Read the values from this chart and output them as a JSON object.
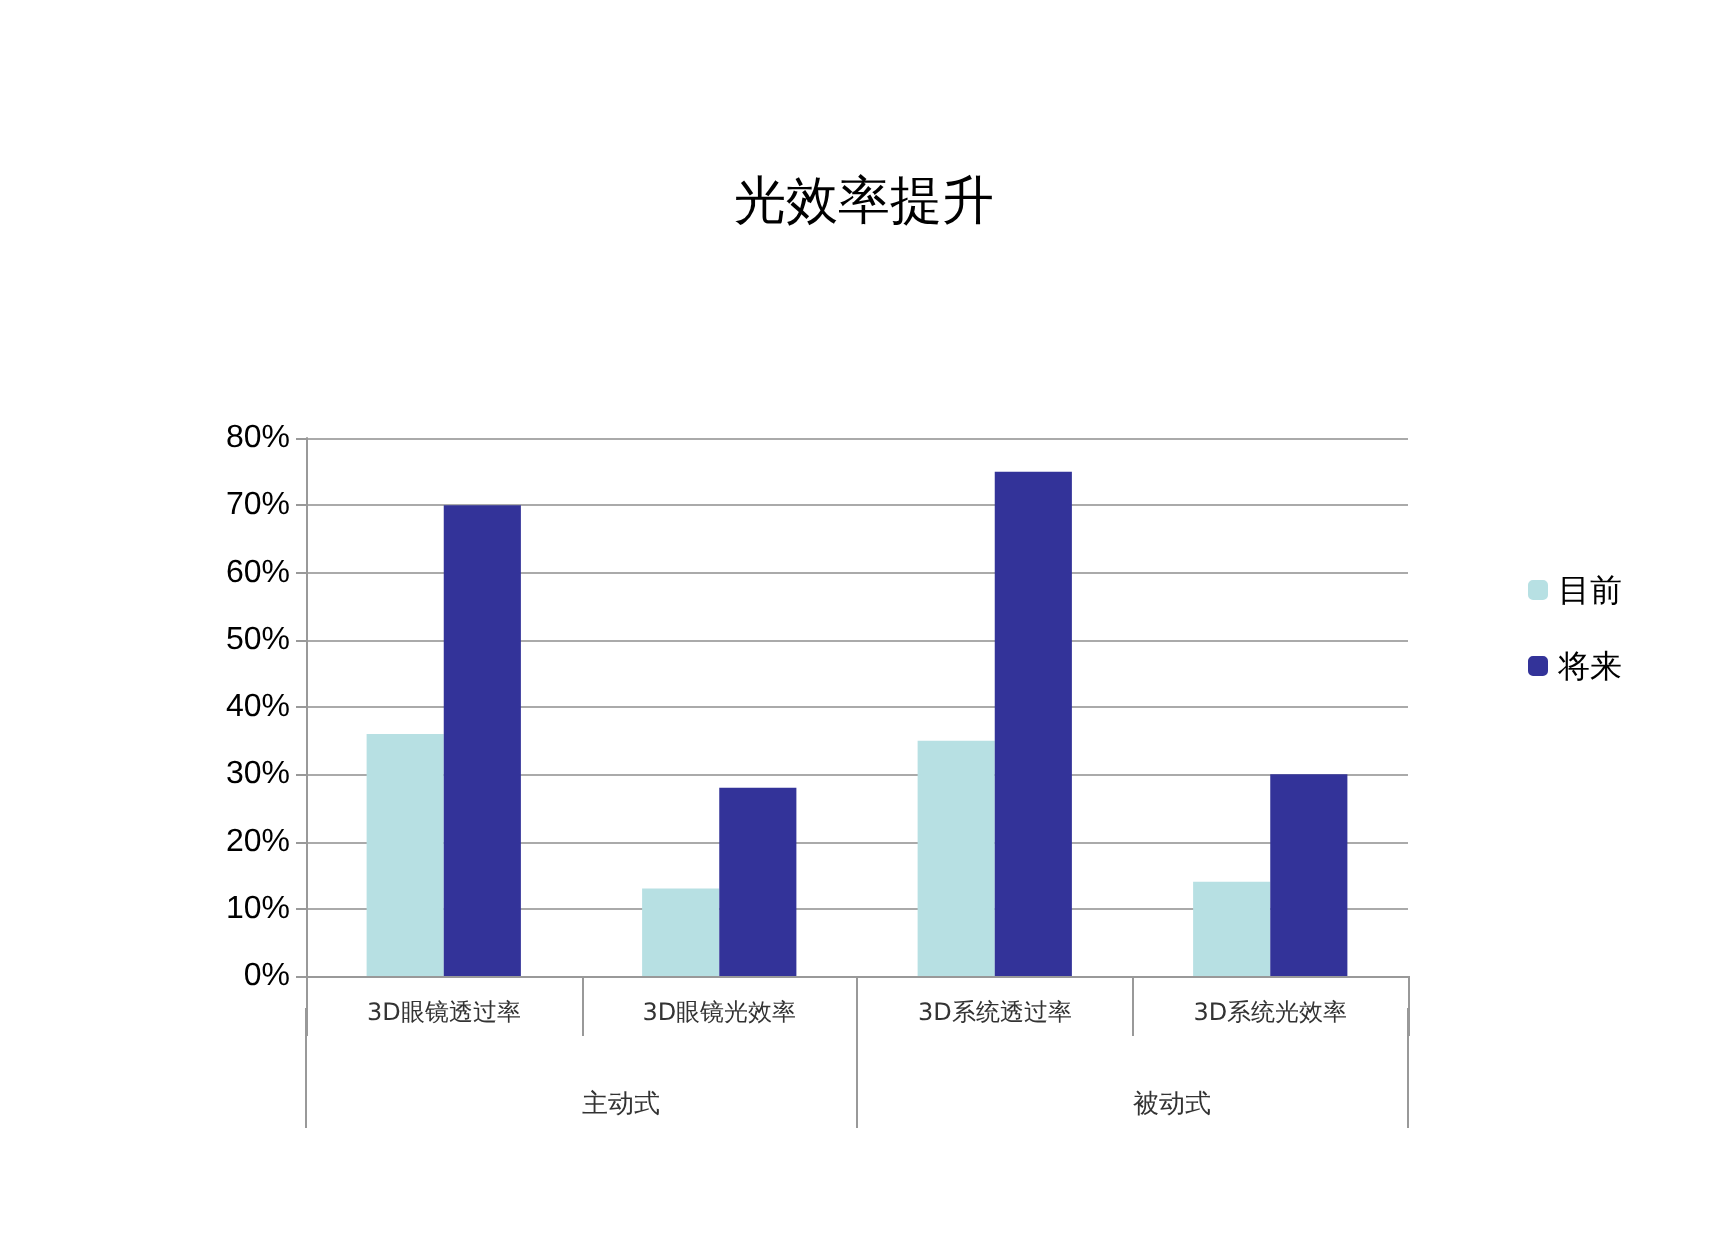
{
  "chart_data": {
    "type": "bar",
    "title": "光效率提升",
    "categories": [
      "3D眼镜透过率",
      "3D眼镜光效率",
      "3D系统透过率",
      "3D系统光效率"
    ],
    "series": [
      {
        "name": "目前",
        "color": "#b7e0e3",
        "values": [
          36,
          13,
          35,
          14
        ]
      },
      {
        "name": "将来",
        "color": "#333399",
        "values": [
          70,
          28,
          75,
          30
        ]
      }
    ],
    "ylim": [
      0,
      80
    ],
    "yticks": [
      {
        "value": 0,
        "label": "0%"
      },
      {
        "value": 10,
        "label": "10%"
      },
      {
        "value": 20,
        "label": "20%"
      },
      {
        "value": 30,
        "label": "30%"
      },
      {
        "value": 40,
        "label": "40%"
      },
      {
        "value": 50,
        "label": "50%"
      },
      {
        "value": 60,
        "label": "60%"
      },
      {
        "value": 70,
        "label": "70%"
      },
      {
        "value": 80,
        "label": "80%"
      }
    ],
    "grid": "y",
    "legend": "right",
    "annotations": [
      "主动式",
      "被动式"
    ]
  }
}
